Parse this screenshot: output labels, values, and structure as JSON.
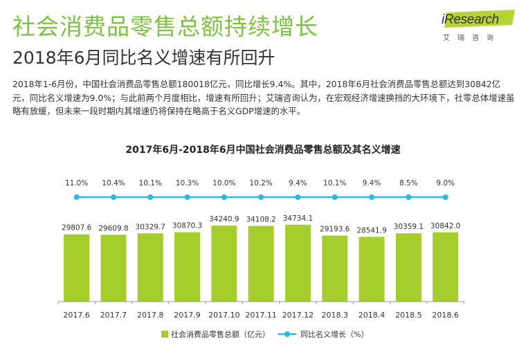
{
  "header": {
    "title": "社会消费品零售总额持续增长",
    "subtitle": "2018年6月同比名义增速有所回升"
  },
  "logo": {
    "prefix": "i",
    "name": "Research",
    "chinese": "艾瑞咨询",
    "accent_color": "#b5d334"
  },
  "description": "2018年1-6月份，中国社会消费品零售总额180018亿元，同比增长9.4%。其中，2018年6月社会消费品零售总额达到30842亿元，同比名义增速为9.0%；与此前两个月度相比，增速有所回升；艾瑞咨询认为，在宏观经济增速换挡的大环境下，社零总体增速虽略有放缓，但未来一段时期内其增速仍将保持在略高于名义GDP增速的水平。",
  "chart_data": {
    "type": "bar",
    "title": "2017年6月-2018年6月中国社会消费品零售总额及其名义增速",
    "categories": [
      "2017.6",
      "2017.7",
      "2017.8",
      "2017.9",
      "2017.10",
      "2017.11",
      "2017.12",
      "2018.3",
      "2018.4",
      "2018.5",
      "2018.6"
    ],
    "series": [
      {
        "name": "社会消费品零售总额（亿元）",
        "type": "bar",
        "values": [
          29807.6,
          29609.8,
          30329.7,
          30870.3,
          34240.9,
          34108.2,
          34734.1,
          29193.6,
          28541.9,
          30359.1,
          30842.0
        ],
        "labels": [
          "29807.6",
          "29609.8",
          "30329.7",
          "30870.3",
          "34240.9",
          "34108.2",
          "34734.1",
          "29193.6",
          "28541.9",
          "30359.1",
          "30842.0"
        ],
        "color": "#a5cd2c"
      },
      {
        "name": "同比名义增长（%）",
        "type": "line",
        "values": [
          11.0,
          10.4,
          10.1,
          10.3,
          10.0,
          10.2,
          9.4,
          10.1,
          9.4,
          8.5,
          9.0
        ],
        "labels": [
          "11.0%",
          "10.4%",
          "10.1%",
          "10.3%",
          "10.0%",
          "10.2%",
          "9.4%",
          "10.1%",
          "9.4%",
          "8.5%",
          "9.0%"
        ],
        "color": "#29b7e8"
      }
    ],
    "legend": "bottom-center",
    "grid": false,
    "axis_color": "#999999"
  }
}
